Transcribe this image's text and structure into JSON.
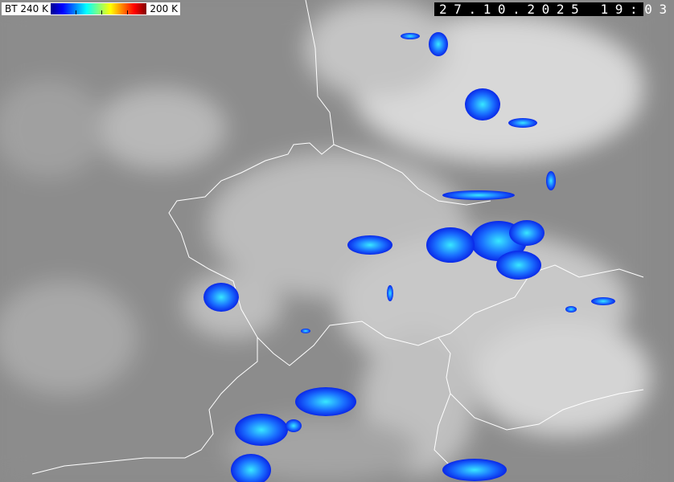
{
  "legend": {
    "label_left": "BT 240 K",
    "label_right": "200 K",
    "colormap": [
      "#00008f",
      "#0000ff",
      "#0080ff",
      "#00ffff",
      "#80ff80",
      "#ffff00",
      "#ff8000",
      "#ff0000",
      "#800000"
    ]
  },
  "timestamp": "27.10.2025 19:03",
  "colors": {
    "background": "#8a8a8a",
    "borders": "#ffffff",
    "cold_cloud": "#1a4cff"
  }
}
